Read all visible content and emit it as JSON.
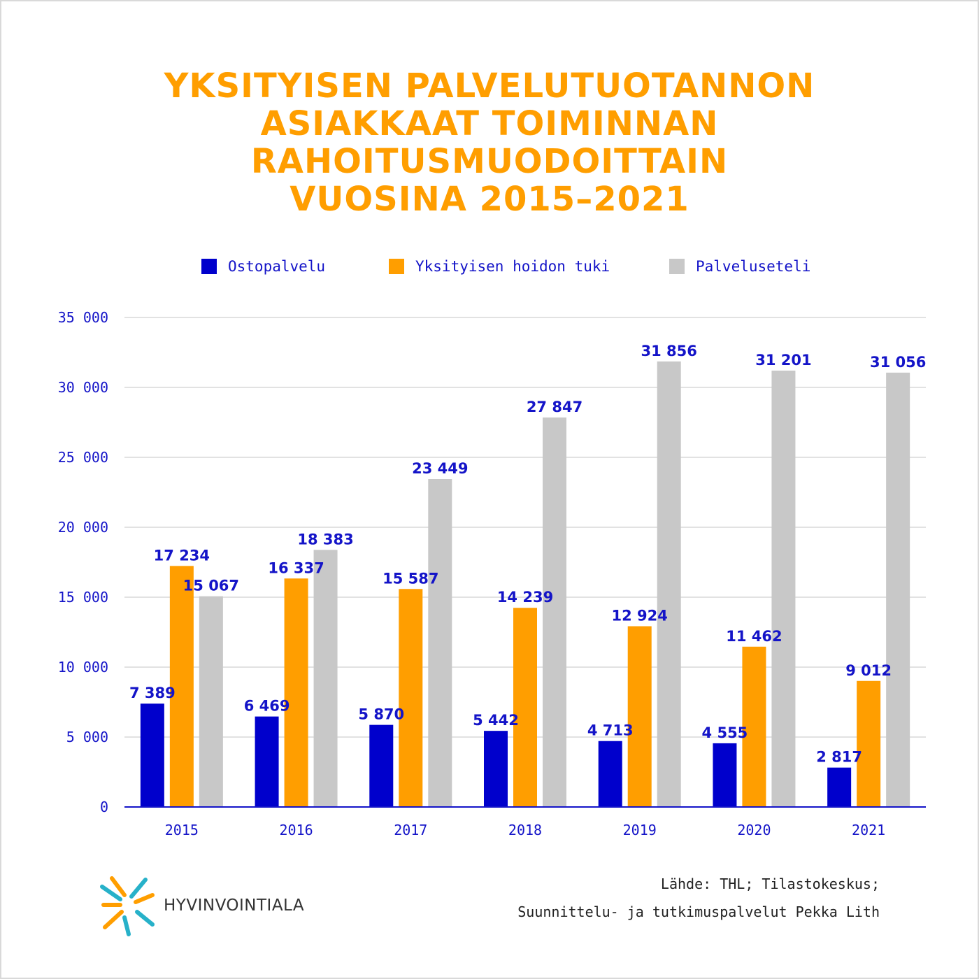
{
  "title_lines": [
    "YKSITYISEN PALVELUTUOTANNON",
    "ASIAKKAAT TOIMINNAN",
    "RAHOITUSMUODOITTAIN",
    "VUOSINA 2015–2021"
  ],
  "colors": {
    "title": "#ff9e00",
    "series": [
      "#0000cc",
      "#ff9e00",
      "#c8c8c8"
    ],
    "text": "#1414c8",
    "grid": "#d9d9d9",
    "axis": "#1414c8"
  },
  "legend": [
    {
      "name": "Ostopalvelu"
    },
    {
      "name": "Yksityisen hoidon tuki"
    },
    {
      "name": "Palveluseteli"
    }
  ],
  "chart_data": {
    "type": "bar",
    "categories": [
      "2015",
      "2016",
      "2017",
      "2018",
      "2019",
      "2020",
      "2021"
    ],
    "series": [
      {
        "name": "Ostopalvelu",
        "values": [
          7389,
          6469,
          5870,
          5442,
          4713,
          4555,
          2817
        ],
        "labels": [
          "7 389",
          "6 469",
          "5 870",
          "5 442",
          "4 713",
          "4 555",
          "2 817"
        ]
      },
      {
        "name": "Yksityisen hoidon tuki",
        "values": [
          17234,
          16337,
          15587,
          14239,
          12924,
          11462,
          9012
        ],
        "labels": [
          "17 234",
          "16 337",
          "15 587",
          "14 239",
          "12 924",
          "11 462",
          "9 012"
        ]
      },
      {
        "name": "Palveluseteli",
        "values": [
          15067,
          18383,
          23449,
          27847,
          31856,
          31201,
          31056
        ],
        "labels": [
          "15 067",
          "18 383",
          "23 449",
          "27 847",
          "31 856",
          "31 201",
          "31 056"
        ]
      }
    ],
    "y_ticks": [
      "0",
      "5 000",
      "10 000",
      "15 000",
      "20 000",
      "25 000",
      "30 000",
      "35 000"
    ],
    "ylim": [
      0,
      35000
    ],
    "grid": true,
    "legend_position": "top"
  },
  "logo": {
    "text": "HYVINVOINTIALA"
  },
  "source_lines": [
    "Lähde: THL; Tilastokeskus;",
    "Suunnittelu- ja tutkimuspalvelut Pekka Lith"
  ]
}
